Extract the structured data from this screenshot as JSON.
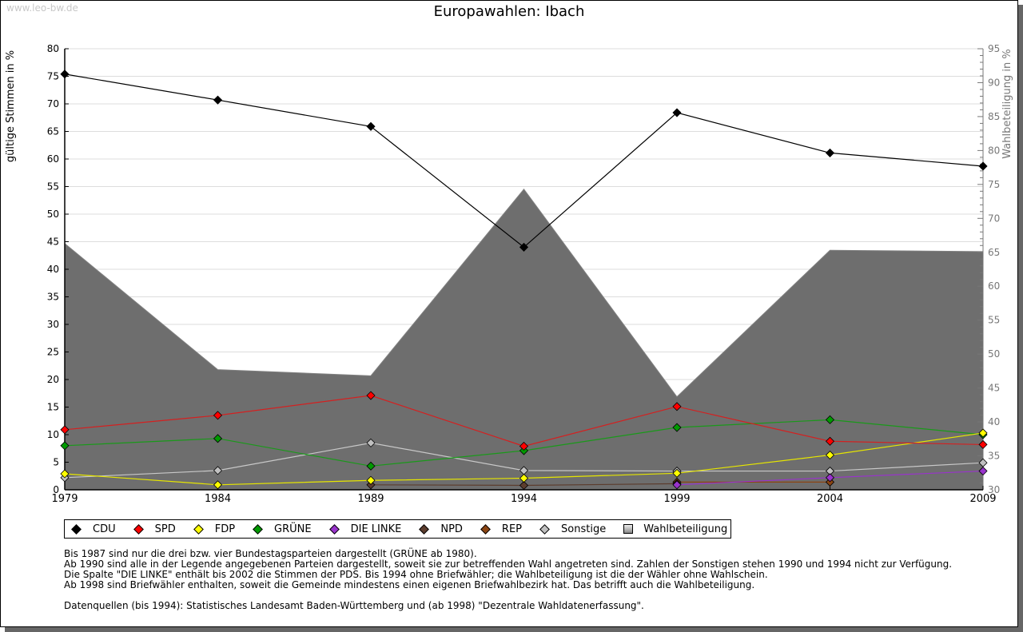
{
  "watermark": "www.leo-bw.de",
  "chart_data": {
    "type": "line",
    "title": "Europawahlen: Ibach",
    "xlabel": "",
    "ylabel": "gültige Stimmen in %",
    "y2label": "Wahlbeteiligung in %",
    "categories": [
      "1979",
      "1984",
      "1989",
      "1994",
      "1999",
      "2004",
      "2009"
    ],
    "ylim": [
      0,
      80
    ],
    "yticks": [
      0,
      5,
      10,
      15,
      20,
      25,
      30,
      35,
      40,
      45,
      50,
      55,
      60,
      65,
      70,
      75,
      80
    ],
    "y2lim": [
      30,
      95
    ],
    "y2ticks": [
      30,
      35,
      40,
      45,
      50,
      55,
      60,
      65,
      70,
      75,
      80,
      85,
      90,
      95
    ],
    "grid": true,
    "legend_position": "bottom",
    "area_series": {
      "name": "Wahlbeteiligung",
      "axis": "right",
      "values": [
        66.3,
        47.7,
        46.8,
        74.3,
        43.7,
        65.3,
        65.1
      ]
    },
    "series": [
      {
        "name": "CDU",
        "color": "#000000",
        "line": "#000000",
        "values": [
          75.4,
          70.7,
          65.9,
          44.0,
          68.4,
          61.1,
          58.7
        ]
      },
      {
        "name": "SPD",
        "color": "#ff0000",
        "line": "#d42020",
        "values": [
          10.9,
          13.5,
          17.1,
          7.9,
          15.1,
          8.8,
          8.2
        ]
      },
      {
        "name": "FDP",
        "color": "#ffff00",
        "line": "#e6e600",
        "values": [
          2.9,
          0.9,
          1.7,
          2.1,
          3.0,
          6.3,
          10.3
        ]
      },
      {
        "name": "GRÜNE",
        "color": "#009900",
        "line": "#1a991a",
        "values": [
          8.0,
          9.3,
          4.3,
          7.1,
          11.3,
          12.7,
          10.0
        ]
      },
      {
        "name": "DIE LINKE",
        "color": "#9933cc",
        "line": "#9933cc",
        "values": [
          null,
          null,
          null,
          null,
          0.9,
          2.2,
          3.4
        ]
      },
      {
        "name": "NPD",
        "color": "#5c3d2e",
        "line": "#5c3d2e",
        "values": [
          null,
          null,
          0.9,
          0.8,
          1.1,
          null,
          null
        ]
      },
      {
        "name": "REP",
        "color": "#8b4513",
        "line": "#8b4513",
        "values": [
          null,
          null,
          null,
          null,
          1.4,
          1.4,
          null
        ]
      },
      {
        "name": "Sonstige",
        "color": "#c0c0c0",
        "line": "#c8c8c8",
        "values": [
          2.2,
          3.5,
          8.5,
          3.5,
          3.4,
          3.4,
          4.9
        ]
      }
    ]
  },
  "legend": [
    {
      "label": "CDU",
      "color": "#000000",
      "type": "marker"
    },
    {
      "label": "SPD",
      "color": "#ff0000",
      "type": "marker"
    },
    {
      "label": "FDP",
      "color": "#ffff00",
      "type": "marker"
    },
    {
      "label": "GRÜNE",
      "color": "#009900",
      "type": "marker"
    },
    {
      "label": "DIE LINKE",
      "color": "#9933cc",
      "type": "marker"
    },
    {
      "label": "NPD",
      "color": "#5c3d2e",
      "type": "marker"
    },
    {
      "label": "REP",
      "color": "#8b4513",
      "type": "marker"
    },
    {
      "label": "Sonstige",
      "color": "#c0c0c0",
      "type": "marker"
    },
    {
      "label": "Wahlbeteiligung",
      "color": "#aaaaaa",
      "type": "square"
    }
  ],
  "notes": [
    "Bis 1987 sind nur die drei bzw. vier Bundestagsparteien dargestellt (GRÜNE ab 1980).",
    "Ab 1990 sind alle in der Legende angegebenen Parteien dargestellt, soweit sie zur betreffenden Wahl angetreten sind. Zahlen der Sonstigen stehen 1990 und 1994 nicht zur Verfügung.",
    "Die Spalte \"DIE LINKE\" enthält bis 2002 die Stimmen der PDS. Bis 1994 ohne Briefwähler; die Wahlbeteiligung ist die der Wähler ohne Wahlschein.",
    "Ab 1998 sind Briefwähler enthalten, soweit die Gemeinde mindestens einen eigenen Briefwahlbezirk hat. Das betrifft auch die Wahlbeteiligung.",
    "",
    "Datenquellen (bis 1994): Statistisches Landesamt Baden-Württemberg und (ab 1998) \"Dezentrale Wahldatenerfassung\"."
  ]
}
